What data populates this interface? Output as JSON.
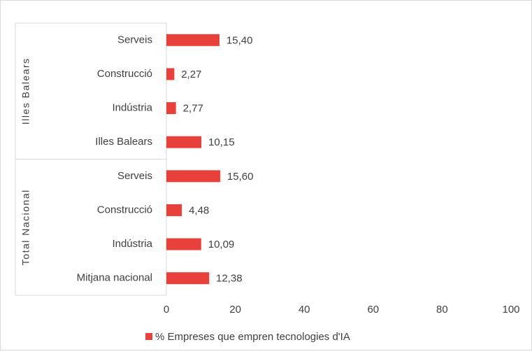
{
  "chart_data": {
    "type": "bar",
    "orientation": "horizontal",
    "groups": [
      {
        "name": "Illes Balears",
        "categories": [
          "Serveis",
          "Construcció",
          "Indústria",
          "Illes Balears"
        ]
      },
      {
        "name": "Total Nacional",
        "categories": [
          "Serveis",
          "Construcció",
          "Indústria",
          "Mitjana nacional"
        ]
      }
    ],
    "series": [
      {
        "name": "% Empreses que empren tecnologies d'IA",
        "color": "#e8403a",
        "values": [
          15.4,
          2.27,
          2.77,
          10.15,
          15.6,
          4.48,
          10.09,
          12.38
        ],
        "value_labels": [
          "15,40",
          "2,27",
          "2,77",
          "10,15",
          "15,60",
          "4,48",
          "10,09",
          "12,38"
        ]
      }
    ],
    "xlim": [
      0,
      100
    ],
    "xticks": [
      0,
      20,
      40,
      60,
      80,
      100
    ],
    "legend": "bottom"
  }
}
